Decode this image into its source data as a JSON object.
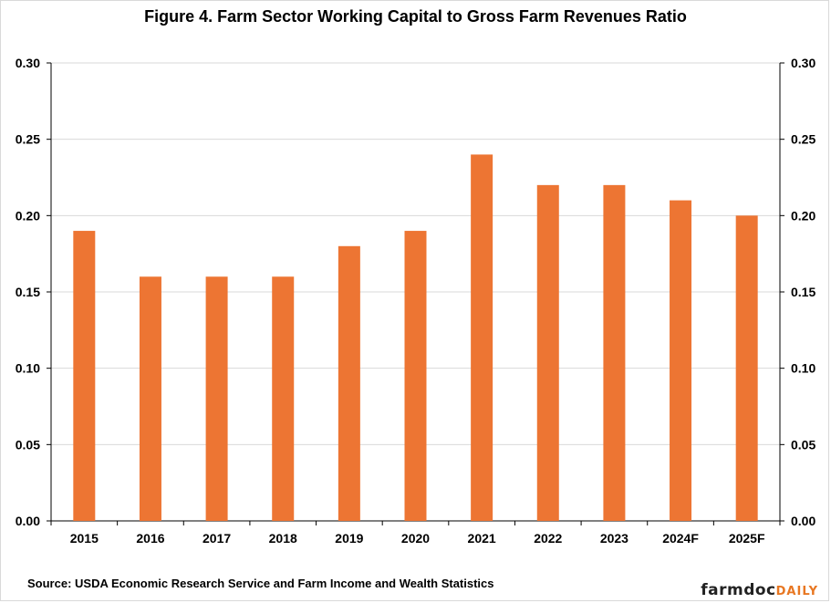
{
  "chart_data": {
    "type": "bar",
    "title": "Figure 4. Farm Sector Working Capital to Gross Farm Revenues Ratio",
    "categories": [
      "2015",
      "2016",
      "2017",
      "2018",
      "2019",
      "2020",
      "2021",
      "2022",
      "2023",
      "2024F",
      "2025F"
    ],
    "values": [
      0.19,
      0.16,
      0.16,
      0.16,
      0.18,
      0.19,
      0.24,
      0.22,
      0.22,
      0.21,
      0.2
    ],
    "ylim": [
      0,
      0.3
    ],
    "yticks": [
      "0.00",
      "0.05",
      "0.10",
      "0.15",
      "0.20",
      "0.25",
      "0.30"
    ],
    "secondary_axis": true,
    "grid": true,
    "bar_color": "#ed7533",
    "xlabel": "",
    "ylabel": ""
  },
  "footer": {
    "source": "Source: USDA Economic Research Service and Farm Income and Wealth Statistics",
    "brand_a": "farmdoc",
    "brand_b": "DAILY"
  }
}
